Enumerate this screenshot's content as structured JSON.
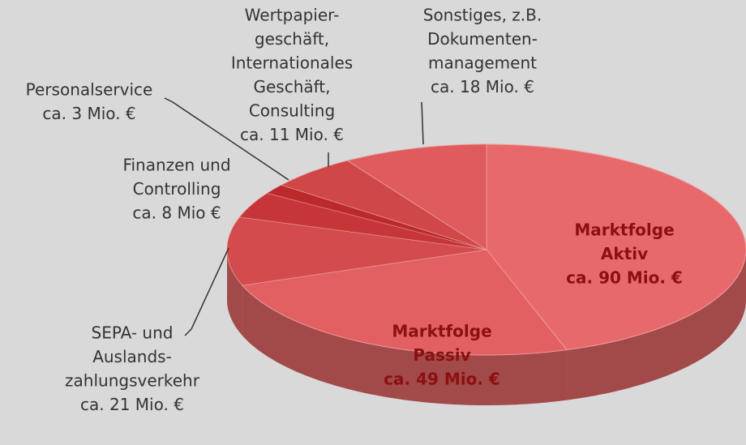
{
  "chart_data": {
    "type": "pie",
    "categories": [
      [
        "Marktfolge",
        "Aktiv"
      ],
      [
        "Marktfolge",
        "Passiv"
      ],
      [
        "SEPA- und",
        "Auslands-",
        "zahlungsverkehr"
      ],
      [
        "Finanzen und",
        "Controlling"
      ],
      [
        "Personalservice"
      ],
      [
        "Wertpapier-",
        "geschäft,",
        "Internationales",
        "Geschäft,",
        "Consulting"
      ],
      [
        "Sonstiges, z.B.",
        "Dokumenten-",
        "management"
      ]
    ],
    "values": [
      90,
      49,
      21,
      8,
      3,
      11,
      18
    ],
    "value_labels": [
      "ca. 90 Mio. €",
      "ca. 49 Mio. €",
      "ca. 21 Mio. €",
      "ca. 8 Mio €",
      "ca. 3 Mio. €",
      "ca. 11 Mio. €",
      "ca. 18 Mio. €"
    ],
    "color": "#e8696b"
  }
}
